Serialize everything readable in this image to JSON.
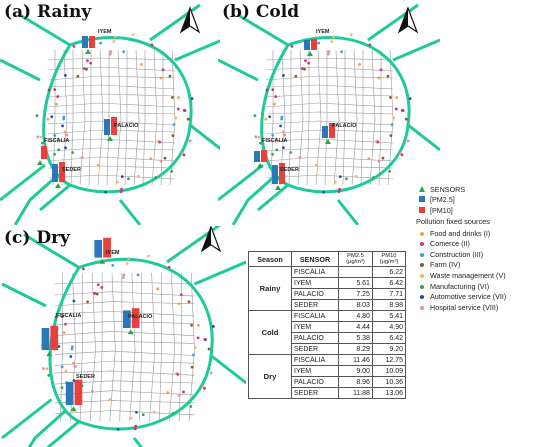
{
  "panels": [
    {
      "id": "rainy",
      "label": "(a) Rainy"
    },
    {
      "id": "cold",
      "label": "(b) Cold"
    },
    {
      "id": "dry",
      "label": "(c) Dry"
    }
  ],
  "site_labels": {
    "iyem": "IYEM",
    "palacio": "PALACIO",
    "fiscalia": "FISCALIA",
    "seder": "SEDER"
  },
  "legend": {
    "sensors": "SENSORS",
    "pm25": "[PM2.5]",
    "pm10": "[PM10]",
    "title": "Pollution fixed sources",
    "sources": [
      {
        "label": "Food and drinks (I)",
        "color": "#f0a24a"
      },
      {
        "label": "Comerce (II)",
        "color": "#d8307a"
      },
      {
        "label": "Construction (III)",
        "color": "#3aa0d0"
      },
      {
        "label": "Farm (IV)",
        "color": "#8a5a2a"
      },
      {
        "label": "Waste management (V)",
        "color": "#f4b860"
      },
      {
        "label": "Manufacturing (VI)",
        "color": "#2ea84a"
      },
      {
        "label": "Automotive service (VII)",
        "color": "#2a4aa8"
      },
      {
        "label": "Hospital service (VIII)",
        "color": "#e88ab8"
      }
    ]
  },
  "colors": {
    "road": "#1ec99a",
    "pm25": "#2a78b8",
    "pm10": "#e8403a",
    "sensor": "#27a844"
  },
  "table": {
    "headers": {
      "season": "Season",
      "sensor": "SENSOR",
      "pm25": "PM2.5 (μg/m³)",
      "pm10": "PM10 (μg/m³)"
    },
    "groups": [
      {
        "season": "Rainy",
        "rows": [
          {
            "sensor": "FISCALIA",
            "pm25": "",
            "pm10": "6.22"
          },
          {
            "sensor": "IYEM",
            "pm25": "5.61",
            "pm10": "6.42"
          },
          {
            "sensor": "PALACIO",
            "pm25": "7.25",
            "pm10": "7.71"
          },
          {
            "sensor": "SEDER",
            "pm25": "8.03",
            "pm10": "8.98"
          }
        ]
      },
      {
        "season": "Cold",
        "rows": [
          {
            "sensor": "FISCALIA",
            "pm25": "4.80",
            "pm10": "5.41"
          },
          {
            "sensor": "IYEM",
            "pm25": "4.44",
            "pm10": "4.90"
          },
          {
            "sensor": "PALACIO",
            "pm25": "5.38",
            "pm10": "6.42"
          },
          {
            "sensor": "SEDER",
            "pm25": "8.29",
            "pm10": "9.20"
          }
        ]
      },
      {
        "season": "Dry",
        "rows": [
          {
            "sensor": "FISCALIA",
            "pm25": "11.46",
            "pm10": "12.75"
          },
          {
            "sensor": "IYEM",
            "pm25": "9.00",
            "pm10": "10.09"
          },
          {
            "sensor": "PALACIO",
            "pm25": "8.96",
            "pm10": "10.36"
          },
          {
            "sensor": "SEDER",
            "pm25": "11.88",
            "pm10": "13.06"
          }
        ]
      }
    ]
  }
}
